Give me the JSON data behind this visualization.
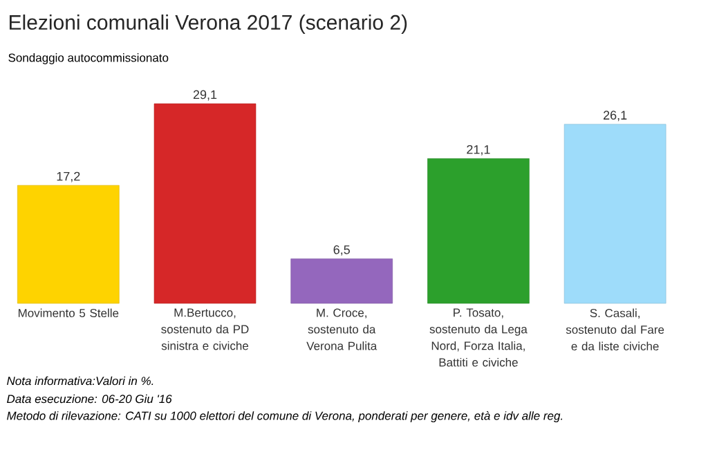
{
  "chart_data": {
    "type": "bar",
    "title": "Elezioni comunali Verona 2017 (scenario 2)",
    "subtitle": "Sondaggio autocommissionato",
    "categories": [
      "Movimento 5 Stelle",
      "M.Bertucco, sostenuto da PD sinistra e civiche",
      "M. Croce, sostenuto da Verona Pulita",
      "P. Tosato, sostenuto da Lega Nord, Forza Italia, Battiti e civiche",
      "S. Casali, sostenuto dal Fare e da liste civiche"
    ],
    "values": [
      17.2,
      29.1,
      6.5,
      21.1,
      26.1
    ],
    "colors": [
      "#fed300",
      "#d62728",
      "#9467bd",
      "#2ca02c",
      "#9edcfa"
    ],
    "value_labels": [
      "17,2",
      "29,1",
      "6,5",
      "21,1",
      "26,1"
    ],
    "annotations": [
      "Nota informativa:Valori in %.",
      "Data esecuzione: 06-20 Giu '16",
      "Metodo di rilevazione: CATI su 1000 elettori del comune di Verona, ponderati per genere, età e idv alle reg."
    ]
  }
}
